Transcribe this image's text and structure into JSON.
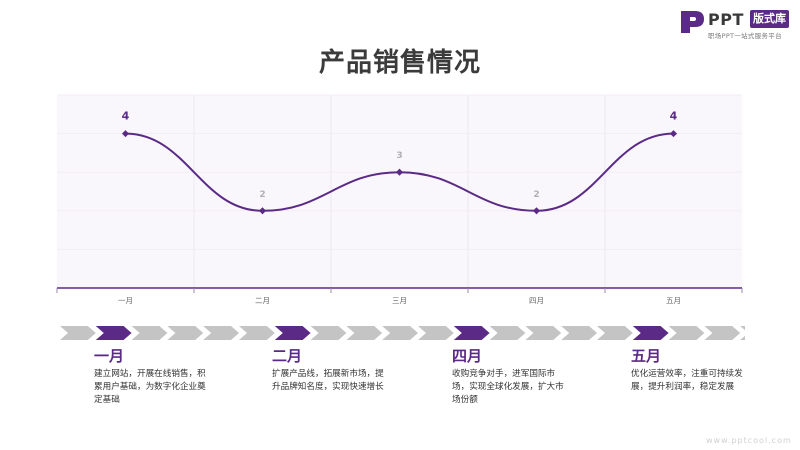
{
  "logo": {
    "word": "PPT",
    "tag": "版式库",
    "subtitle": "职场PPT一站式服务平台"
  },
  "title": "产品销售情况",
  "colors": {
    "accent": "#5b2a86",
    "chevron_inactive": "#c4c4c4",
    "plot_bg": "#faf7fc",
    "label_muted": "#b0b0b0"
  },
  "chart_data": {
    "type": "line",
    "smooth": true,
    "categories": [
      "一月",
      "二月",
      "三月",
      "四月",
      "五月"
    ],
    "values": [
      4,
      2,
      3,
      2,
      4
    ],
    "data_labels": [
      "4",
      "2",
      "3",
      "2",
      "4"
    ],
    "ylim": [
      0,
      5
    ],
    "grid": true,
    "title": "",
    "xlabel": "",
    "ylabel": ""
  },
  "timeline": {
    "chevron_count": 20,
    "active_index": [
      1,
      6,
      11,
      16
    ],
    "steps": [
      {
        "month": "一月",
        "desc": "建立网站，开展在线销售，积累用户基础，为数字化企业奠定基础"
      },
      {
        "month": "二月",
        "desc": "扩展产品线，拓展新市场，提升品牌知名度，实现快速增长"
      },
      {
        "month": "四月",
        "desc": "收购竞争对手，进军国际市场，实现全球化发展，扩大市场份额"
      },
      {
        "month": "五月",
        "desc": "优化运营效率，注重可持续发展，提升利润率，稳定发展"
      }
    ]
  },
  "watermark": "www.pptcool.com"
}
